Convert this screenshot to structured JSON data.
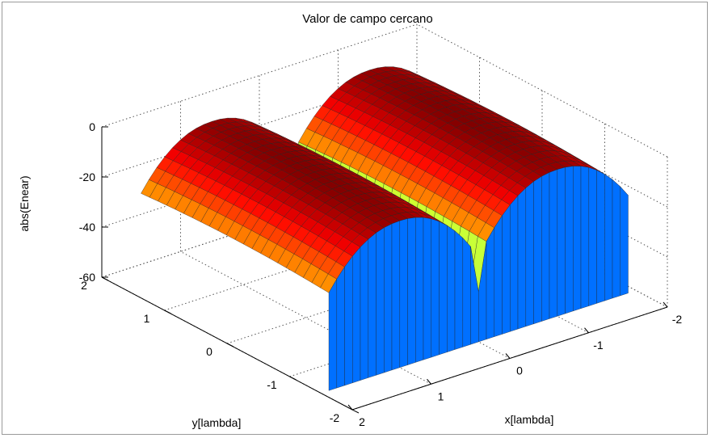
{
  "chart_data": {
    "type": "surface",
    "title": "Valor de campo cercano",
    "xlabel": "x[lambda]",
    "ylabel": "y[lambda]",
    "zlabel": "abs(Enear)",
    "x_ticks": [
      "-2",
      "-1",
      "0",
      "1",
      "2"
    ],
    "y_ticks": [
      "-2",
      "-1",
      "0",
      "1",
      "2"
    ],
    "z_ticks": [
      "-60",
      "-40",
      "-20",
      "0"
    ],
    "xlim": [
      -2,
      2
    ],
    "ylim": [
      -2,
      2
    ],
    "zlim": [
      -60,
      0
    ],
    "grid": true,
    "colormap": "jet",
    "surface": {
      "x_ridges": [
        -1,
        1
      ],
      "ridge_peak": 0,
      "trough_min": -60,
      "ridge_extent_x": [
        -1.9,
        1.9
      ],
      "surface_extent_y": [
        -1.5,
        1.5
      ]
    }
  }
}
